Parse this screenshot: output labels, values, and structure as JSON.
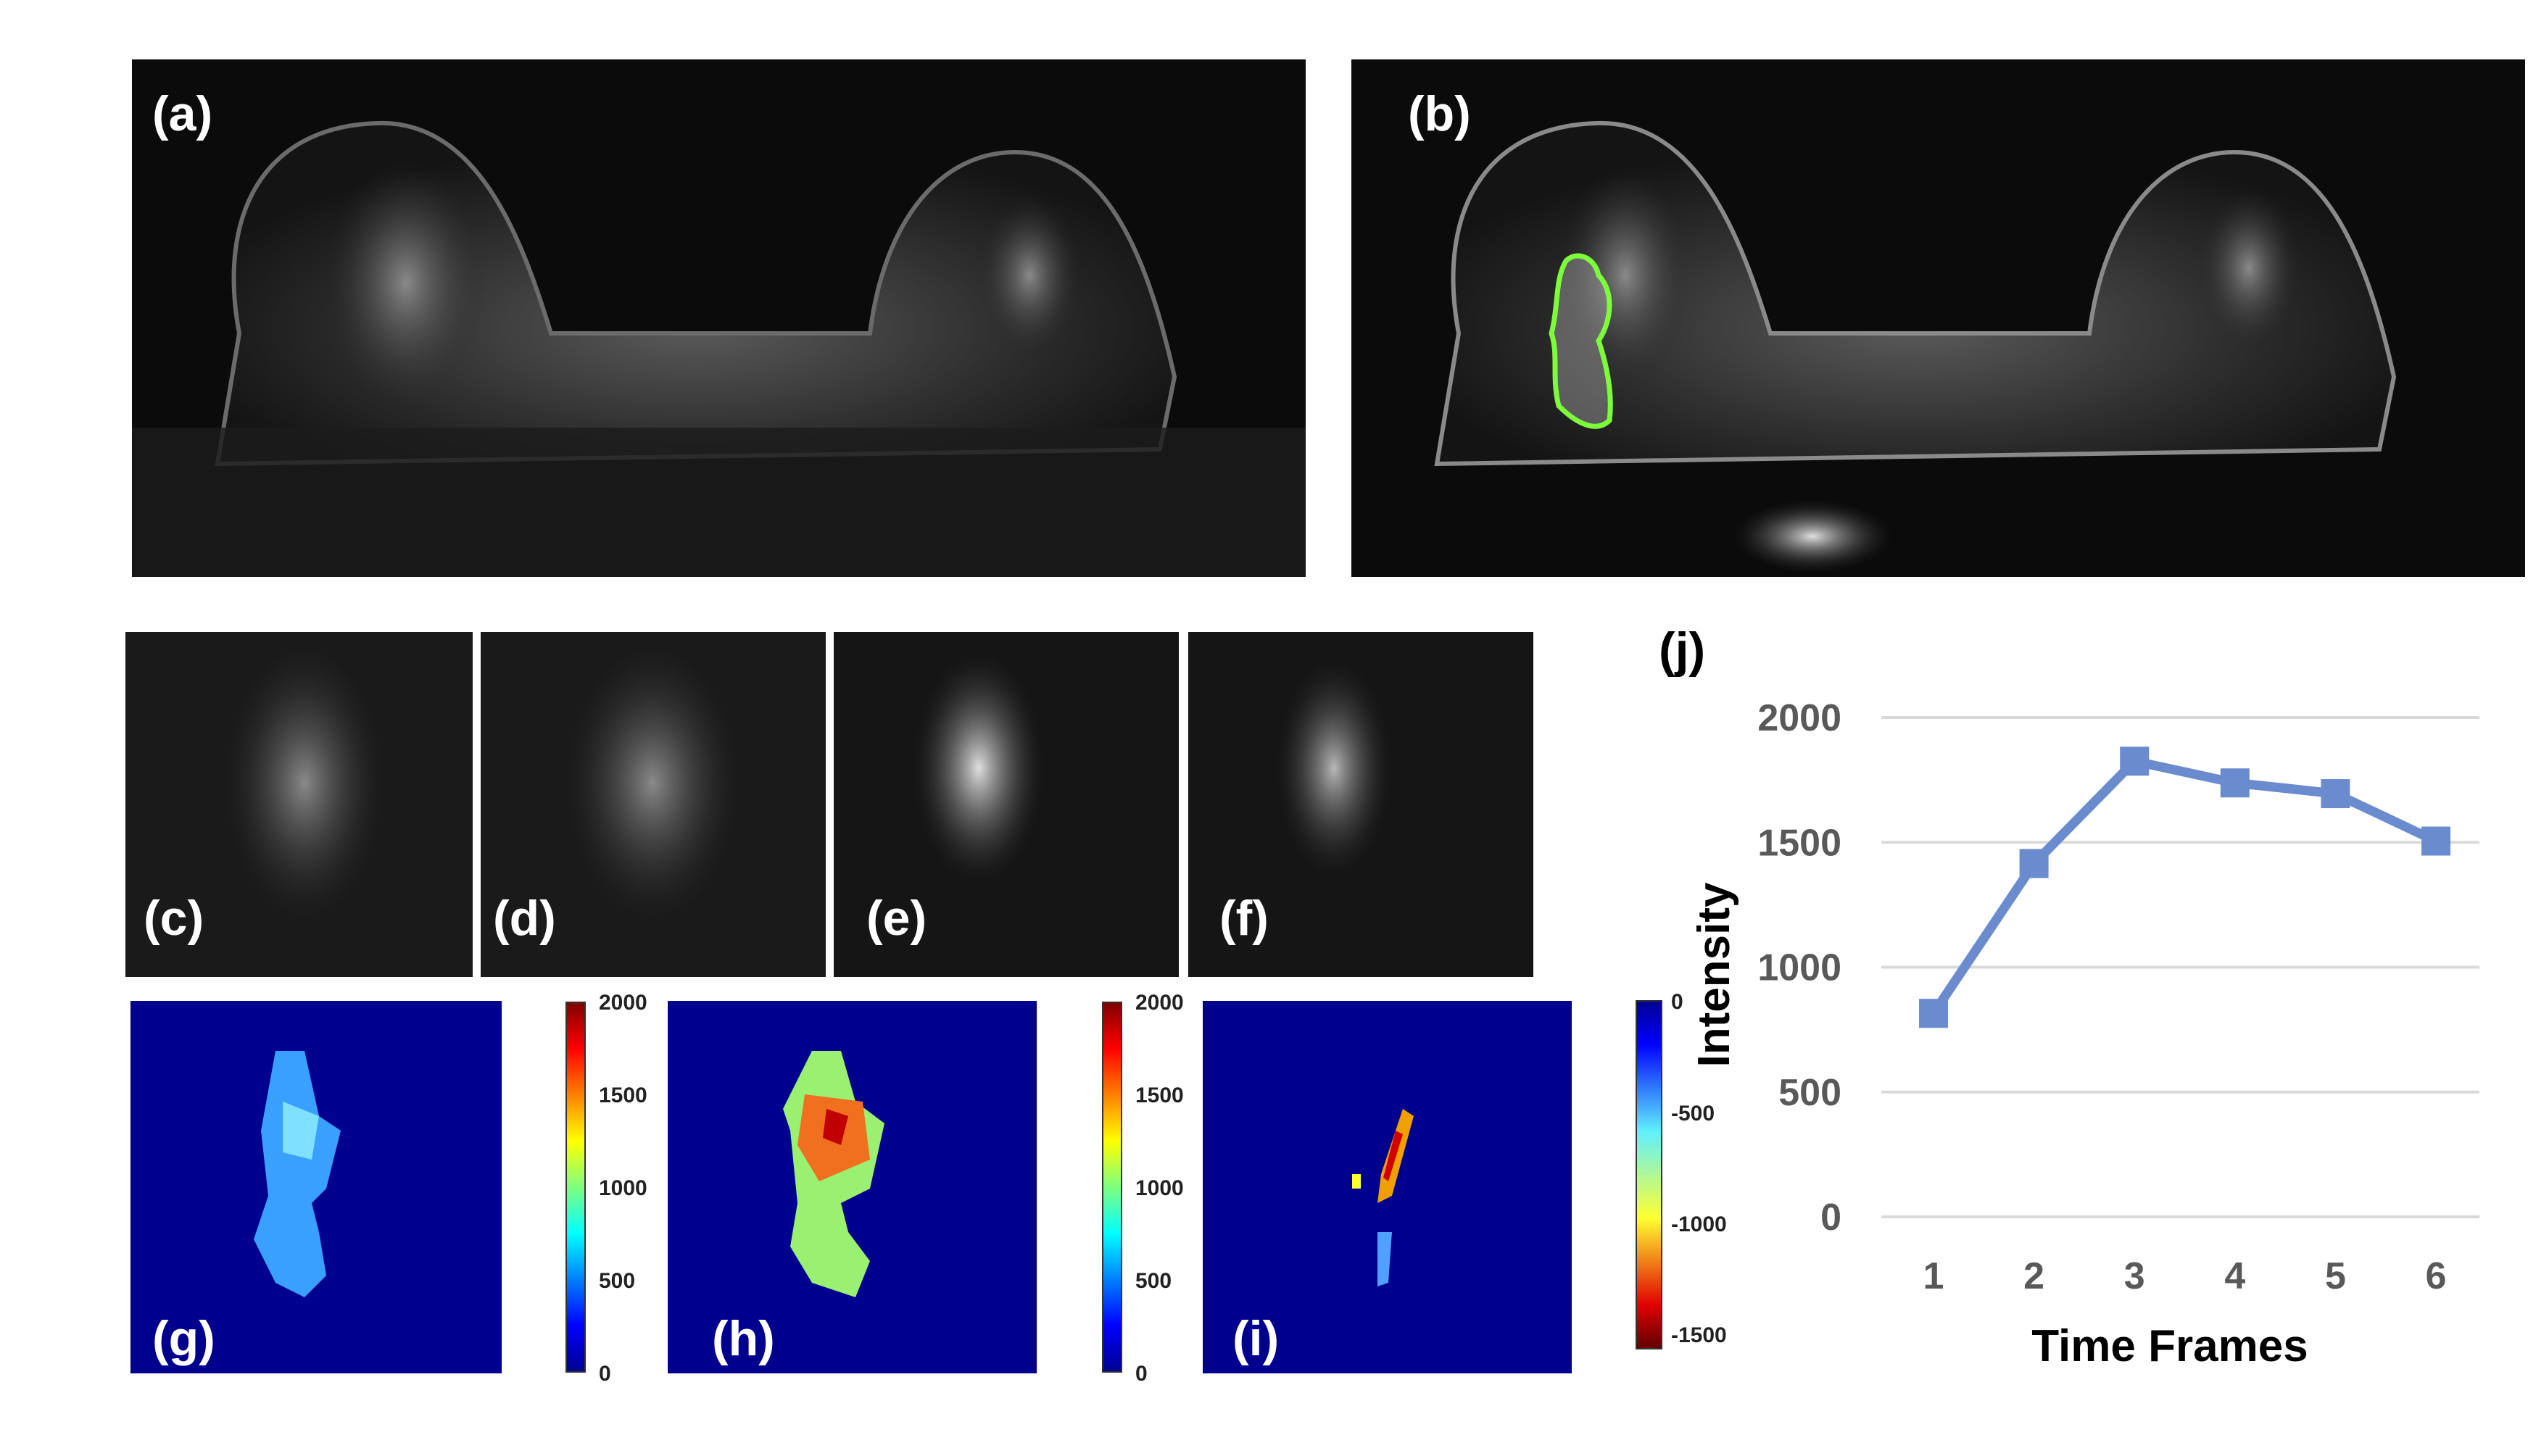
{
  "panels": {
    "a": "(a)",
    "b": "(b)",
    "c": "(c)",
    "d": "(d)",
    "e": "(e)",
    "f": "(f)",
    "g": "(g)",
    "h": "(h)",
    "i": "(i)",
    "j": "(j)"
  },
  "colorbars": {
    "g": {
      "ticks": [
        "2000",
        "1500",
        "1000",
        "500",
        "0"
      ],
      "range": [
        0,
        2000
      ],
      "colormap": "jet"
    },
    "h": {
      "ticks": [
        "2000",
        "1500",
        "1000",
        "500",
        "0"
      ],
      "range": [
        0,
        2000
      ],
      "colormap": "jet"
    },
    "i": {
      "ticks": [
        "0",
        "-500",
        "-1000",
        "-1500"
      ],
      "range": [
        -1650,
        0
      ],
      "colormap": "jet-reversed"
    }
  },
  "roi_color": "#7CFC3A",
  "chart_data": {
    "type": "line",
    "x": [
      1,
      2,
      3,
      4,
      5,
      6
    ],
    "x_ticks": [
      "1",
      "2",
      "3",
      "4",
      "5",
      "6"
    ],
    "series": [
      {
        "values": [
          815,
          1415,
          1825,
          1738,
          1695,
          1505
        ],
        "color": "#6A8BCE",
        "marker": "square"
      }
    ],
    "y_ticks": [
      "2000",
      "1500",
      "1000",
      "500",
      "0"
    ],
    "ylim": [
      0,
      2000
    ],
    "xlabel": "Time Frames",
    "ylabel": "Intensity",
    "grid": true
  }
}
